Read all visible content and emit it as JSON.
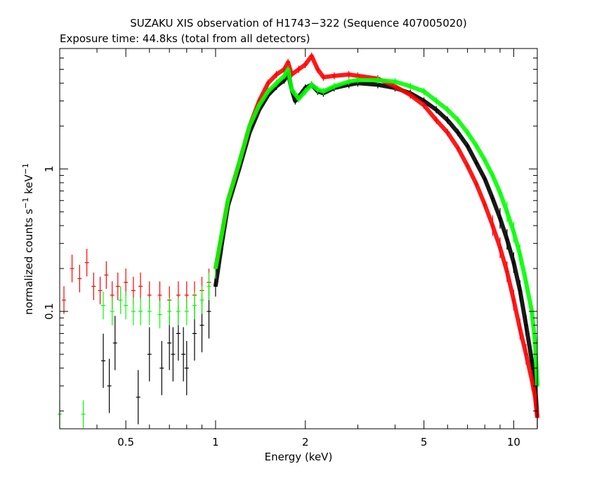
{
  "chart_data": {
    "type": "scatter",
    "title": "SUZAKU XIS observation of H1743−322 (Sequence 407005020)",
    "subtitle": "Exposure time: 44.8ks (total from all detectors)",
    "xlabel": "Energy (keV)",
    "ylabel_main": "normalized counts s",
    "ylabel_mid": " keV",
    "ylabel_sup": "−1",
    "x_scale": "log",
    "y_scale": "log",
    "xlim": [
      0.3,
      12
    ],
    "ylim": [
      0.015,
      7
    ],
    "x_ticks": [
      {
        "value": 0.5,
        "label": "0.5"
      },
      {
        "value": 1,
        "label": "1"
      },
      {
        "value": 2,
        "label": "2"
      },
      {
        "value": 5,
        "label": "5"
      },
      {
        "value": 10,
        "label": "10"
      }
    ],
    "y_ticks": [
      {
        "value": 0.1,
        "label": "0.1"
      },
      {
        "value": 1,
        "label": "1"
      }
    ],
    "grid": false,
    "legend": "none",
    "series": [
      {
        "color": "#000000",
        "x": [
          0.42,
          0.44,
          0.46,
          0.55,
          0.6,
          0.66,
          0.7,
          0.72,
          0.75,
          0.78,
          0.8,
          0.85,
          0.9,
          0.95,
          1.0,
          1.05,
          1.1,
          1.2,
          1.3,
          1.4,
          1.5,
          1.6,
          1.7,
          1.75,
          1.8,
          1.85,
          1.9,
          2.0,
          2.1,
          2.2,
          2.3,
          2.5,
          2.8,
          3.0,
          3.5,
          4.0,
          4.5,
          5.0,
          5.5,
          6.0,
          6.5,
          7.0,
          7.5,
          8.0,
          8.5,
          9.0,
          9.5,
          10.0,
          10.5,
          11.0,
          11.5,
          11.8,
          12.0
        ],
        "y": [
          0.045,
          0.03,
          0.06,
          0.025,
          0.05,
          0.04,
          0.06,
          0.05,
          0.07,
          0.05,
          0.04,
          0.07,
          0.08,
          0.1,
          0.15,
          0.3,
          0.55,
          1.0,
          1.8,
          2.6,
          3.3,
          3.8,
          4.2,
          4.7,
          3.6,
          3.0,
          3.2,
          3.7,
          3.9,
          3.5,
          3.4,
          3.7,
          3.9,
          4.0,
          3.9,
          3.7,
          3.4,
          3.0,
          2.6,
          2.2,
          1.8,
          1.45,
          1.1,
          0.85,
          0.62,
          0.45,
          0.32,
          0.22,
          0.14,
          0.08,
          0.045,
          0.03,
          0.018
        ]
      },
      {
        "color": "#ff0000",
        "x": [
          0.31,
          0.33,
          0.35,
          0.37,
          0.39,
          0.41,
          0.43,
          0.45,
          0.47,
          0.5,
          0.53,
          0.56,
          0.6,
          0.65,
          0.7,
          0.75,
          0.8,
          0.85,
          0.9,
          0.95,
          1.0,
          1.05,
          1.1,
          1.2,
          1.3,
          1.4,
          1.5,
          1.6,
          1.7,
          1.75,
          1.8,
          1.9,
          2.0,
          2.1,
          2.2,
          2.3,
          2.5,
          2.8,
          3.0,
          3.5,
          4.0,
          4.5,
          5.0,
          5.5,
          6.0,
          6.5,
          7.0,
          7.5,
          8.0,
          8.5,
          9.0,
          9.5,
          10.0,
          10.5,
          11.0,
          11.5,
          11.8,
          12.0
        ],
        "y": [
          0.12,
          0.2,
          0.17,
          0.22,
          0.15,
          0.14,
          0.18,
          0.13,
          0.15,
          0.16,
          0.14,
          0.15,
          0.13,
          0.13,
          0.12,
          0.13,
          0.13,
          0.13,
          0.14,
          0.16,
          0.2,
          0.35,
          0.6,
          1.1,
          2.0,
          3.0,
          4.0,
          4.6,
          5.0,
          5.6,
          4.6,
          5.0,
          5.4,
          6.2,
          5.0,
          4.4,
          4.5,
          4.6,
          4.5,
          4.3,
          3.8,
          3.3,
          2.8,
          2.2,
          1.8,
          1.4,
          1.05,
          0.78,
          0.56,
          0.4,
          0.28,
          0.19,
          0.12,
          0.075,
          0.05,
          0.033,
          0.025,
          0.018
        ]
      },
      {
        "color": "#00ff00",
        "x": [
          0.3,
          0.36,
          0.42,
          0.45,
          0.48,
          0.5,
          0.53,
          0.56,
          0.6,
          0.65,
          0.7,
          0.75,
          0.8,
          0.85,
          0.9,
          0.95,
          1.0,
          1.05,
          1.1,
          1.2,
          1.3,
          1.4,
          1.5,
          1.6,
          1.7,
          1.75,
          1.8,
          1.9,
          2.0,
          2.1,
          2.2,
          2.3,
          2.5,
          2.8,
          3.0,
          3.5,
          4.0,
          4.5,
          5.0,
          5.5,
          6.0,
          6.5,
          7.0,
          7.5,
          8.0,
          8.5,
          9.0,
          9.5,
          10.0,
          10.5,
          11.0,
          11.5,
          11.8,
          12.0
        ],
        "y": [
          0.019,
          0.019,
          0.11,
          0.1,
          0.12,
          0.11,
          0.1,
          0.1,
          0.1,
          0.095,
          0.1,
          0.1,
          0.1,
          0.11,
          0.12,
          0.15,
          0.2,
          0.35,
          0.6,
          1.1,
          2.0,
          2.8,
          3.5,
          4.0,
          4.5,
          5.0,
          3.6,
          3.1,
          3.5,
          3.9,
          3.6,
          3.5,
          3.8,
          4.1,
          4.2,
          4.2,
          4.1,
          3.8,
          3.5,
          3.0,
          2.6,
          2.2,
          1.8,
          1.45,
          1.15,
          0.9,
          0.68,
          0.5,
          0.36,
          0.25,
          0.16,
          0.1,
          0.06,
          0.03
        ]
      }
    ]
  }
}
